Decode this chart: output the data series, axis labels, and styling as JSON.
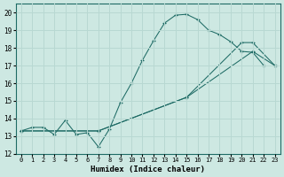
{
  "xlabel": "Humidex (Indice chaleur)",
  "xlim": [
    -0.5,
    23.5
  ],
  "ylim": [
    12,
    20.5
  ],
  "xticks": [
    0,
    1,
    2,
    3,
    4,
    5,
    6,
    7,
    8,
    9,
    10,
    11,
    12,
    13,
    14,
    15,
    16,
    17,
    18,
    19,
    20,
    21,
    22,
    23
  ],
  "yticks": [
    12,
    13,
    14,
    15,
    16,
    17,
    18,
    19,
    20
  ],
  "bg_color": "#cde8e2",
  "line_color": "#1e6b65",
  "grid_color": "#b8d8d2",
  "line1_x": [
    0,
    1,
    2,
    3,
    4,
    5,
    6,
    7,
    8,
    9,
    10,
    11,
    12,
    13,
    14,
    15,
    16,
    17,
    18,
    19,
    20,
    21,
    22
  ],
  "line1_y": [
    13.3,
    13.5,
    13.5,
    13.1,
    13.9,
    13.1,
    13.2,
    12.4,
    13.4,
    14.9,
    16.0,
    17.3,
    18.4,
    19.4,
    19.85,
    19.9,
    19.6,
    19.0,
    18.75,
    18.35,
    17.8,
    17.75,
    17.0
  ],
  "line2_x": [
    0,
    7,
    15,
    21,
    23
  ],
  "line2_y": [
    13.3,
    13.3,
    15.2,
    17.8,
    17.0
  ],
  "line3_x": [
    0,
    7,
    15,
    20,
    21,
    23
  ],
  "line3_y": [
    13.3,
    13.3,
    15.2,
    18.3,
    18.3,
    17.0
  ]
}
